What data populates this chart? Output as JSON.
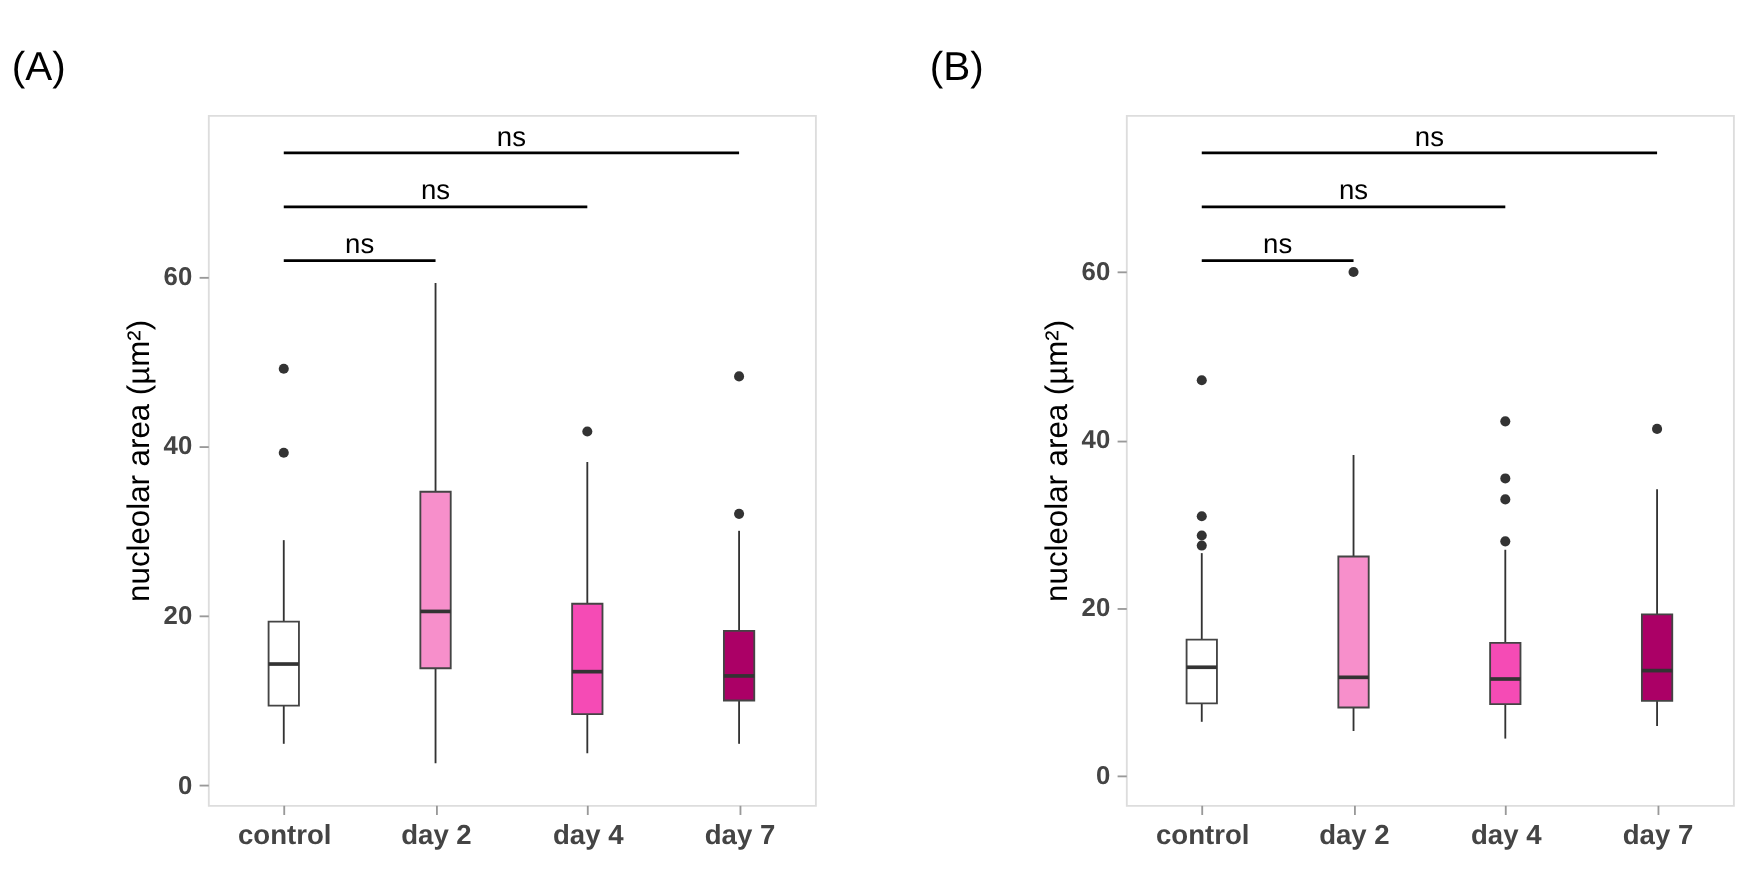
{
  "chart_data": [
    {
      "type": "box",
      "title": "(A)",
      "ylabel": "nucleolar area (µm²)",
      "categories": [
        "control",
        "day 2",
        "day 4",
        "day 7"
      ],
      "colors": [
        "#ffffff",
        "#f78fcb",
        "#f54bb5",
        "#ab0066"
      ],
      "boxes": [
        {
          "low": 4.9,
          "q1": 9.4,
          "median": 14.3,
          "q3": 19.3,
          "high": 28.9,
          "outliers": [
            39.2,
            49.1
          ]
        },
        {
          "low": 2.6,
          "q1": 13.8,
          "median": 20.5,
          "q3": 34.6,
          "high": 59.2
        },
        {
          "low": 3.8,
          "q1": 8.4,
          "median": 13.4,
          "q3": 21.4,
          "high": 38.1,
          "outliers": [
            41.7
          ]
        },
        {
          "low": 4.9,
          "q1": 10.0,
          "median": 12.9,
          "q3": 18.2,
          "high": 30.0,
          "outliers": [
            32.0,
            48.2
          ]
        }
      ],
      "ylim": [
        -2.3,
        79
      ],
      "yticks": [
        0,
        20,
        40,
        60
      ],
      "grid": false,
      "annotations": [
        "ns",
        "ns",
        "ns"
      ]
    },
    {
      "type": "box",
      "title": "(B)",
      "ylabel": "nucleolar area (µm²)",
      "categories": [
        "control",
        "day 2",
        "day 4",
        "day 7"
      ],
      "colors": [
        "#ffffff",
        "#f78fcb",
        "#f54bb5",
        "#ab0066"
      ],
      "boxes": [
        {
          "low": 6.4,
          "q1": 8.6,
          "median": 12.9,
          "q3": 16.2,
          "high": 26.5,
          "outliers": [
            27.4,
            28.6,
            30.9,
            47.1
          ]
        },
        {
          "low": 5.3,
          "q1": 8.1,
          "median": 11.7,
          "q3": 26.1,
          "high": 38.2,
          "outliers": [
            60.0
          ]
        },
        {
          "low": 4.4,
          "q1": 8.5,
          "median": 11.5,
          "q3": 15.8,
          "high": 26.9,
          "outliers": [
            27.9,
            32.9,
            35.4,
            42.2
          ]
        },
        {
          "low": 5.9,
          "q1": 8.9,
          "median": 12.5,
          "q3": 19.2,
          "high": 34.1,
          "outliers": [
            41.3
          ]
        }
      ],
      "ylim": [
        -3.5,
        78.7
      ],
      "yticks": [
        0,
        20,
        40,
        60
      ],
      "grid": false,
      "annotations": [
        "ns",
        "ns",
        "ns"
      ]
    }
  ]
}
